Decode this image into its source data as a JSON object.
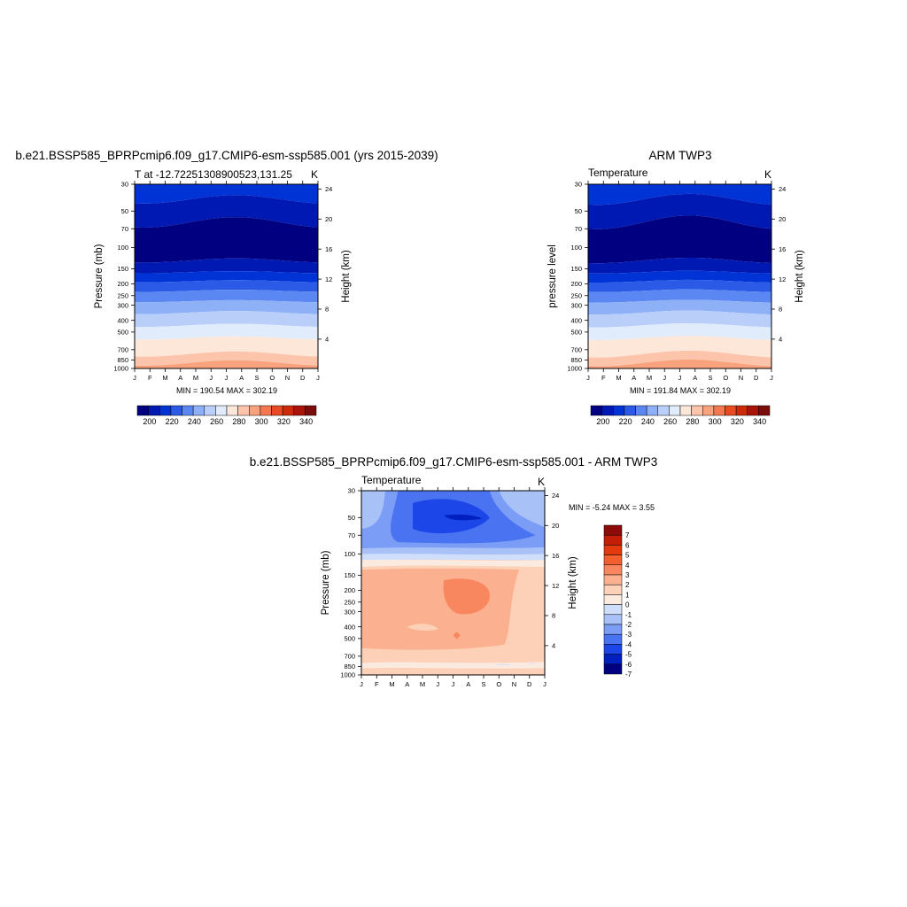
{
  "colors": {
    "palette_12": [
      "#000080",
      "#0019b3",
      "#0033d6",
      "#2b5be6",
      "#5b87f2",
      "#8eb0f7",
      "#b9cff9",
      "#e0ecfb",
      "#fde7d9",
      "#fcc5ab",
      "#f9a27e",
      "#f4774f",
      "#e84a24",
      "#cd2a0a",
      "#a8140a",
      "#7a0c0c"
    ],
    "palette_diff": [
      "#000080",
      "#0020c0",
      "#1d46e8",
      "#4a73f2",
      "#7b9df6",
      "#a8c2f8",
      "#cfdefb",
      "#fbeae0",
      "#fcd1b8",
      "#fbb08f",
      "#f8875f",
      "#f2602f",
      "#e43a10",
      "#c31e08",
      "#8c0a0a"
    ]
  },
  "months": [
    "J",
    "F",
    "M",
    "A",
    "M",
    "J",
    "J",
    "A",
    "S",
    "O",
    "N",
    "D",
    "J"
  ],
  "pressure_ticks": [
    "30",
    "50",
    "70",
    "100",
    "150",
    "200",
    "250",
    "300",
    "400",
    "500",
    "700",
    "850",
    "1000"
  ],
  "pressure_values": [
    30,
    50,
    70,
    100,
    150,
    200,
    250,
    300,
    400,
    500,
    700,
    850,
    1000
  ],
  "height_ticks_km": [
    4,
    8,
    12,
    16,
    20,
    24
  ],
  "panel1": {
    "title": "b.e21.BSSP585_BPRPcmip6.f09_g17.CMIP6-esm-ssp585.001 (yrs 2015-2039)",
    "subtitle_left": "T at -12.72251308900523,131.25",
    "subtitle_right": "K",
    "ylabel": "Pressure (mb)",
    "ylabel_right": "Height (km)",
    "minmax": "MIN = 190.54 MAX = 302.19"
  },
  "panel2": {
    "title": "ARM TWP3",
    "subtitle_left": "Temperature",
    "subtitle_right": "K",
    "ylabel": "pressure level",
    "ylabel_right": "Height (km)",
    "minmax": "MIN = 191.84 MAX = 302.19"
  },
  "panel3": {
    "title": "b.e21.BSSP585_BPRPcmip6.f09_g17.CMIP6-esm-ssp585.001 - ARM TWP3",
    "subtitle_left": "Temperature",
    "subtitle_right": "K",
    "ylabel": "Pressure (mb)",
    "ylabel_right": "Height (km)",
    "minmax": "MIN =  -5.24 MAX =   3.55"
  },
  "colorbar_temp_labels": [
    "200",
    "220",
    "240",
    "260",
    "280",
    "300",
    "320",
    "340"
  ],
  "colorbar_diff_labels": [
    "7",
    "6",
    "5",
    "4",
    "3",
    "2",
    "1",
    "0",
    "-1",
    "-2",
    "-3",
    "-4",
    "-5",
    "-6",
    "-7"
  ],
  "chart_data": [
    {
      "type": "heatmap",
      "title": "b.e21.BSSP585_BPRPcmip6.f09_g17.CMIP6-esm-ssp585.001 (yrs 2015-2039)",
      "subtitle": "T at -12.72251308900523,131.25",
      "units": "K",
      "xlabel": "",
      "ylabel": "Pressure (mb)",
      "ylabel_right": "Height (km)",
      "x": [
        "J",
        "F",
        "M",
        "A",
        "M",
        "J",
        "J",
        "A",
        "S",
        "O",
        "N",
        "D",
        "J"
      ],
      "y_pressure": [
        30,
        50,
        70,
        100,
        150,
        200,
        250,
        300,
        400,
        500,
        700,
        850,
        1000
      ],
      "y_log": true,
      "levels": [
        190,
        200,
        210,
        220,
        230,
        240,
        250,
        260,
        270,
        280,
        290,
        300,
        310,
        320,
        330,
        340,
        350
      ],
      "min": 190.54,
      "max": 302.19
    },
    {
      "type": "heatmap",
      "title": "ARM TWP3",
      "subtitle": "Temperature",
      "units": "K",
      "xlabel": "",
      "ylabel": "pressure level",
      "ylabel_right": "Height (km)",
      "x": [
        "J",
        "F",
        "M",
        "A",
        "M",
        "J",
        "J",
        "A",
        "S",
        "O",
        "N",
        "D",
        "J"
      ],
      "y_pressure": [
        30,
        50,
        70,
        100,
        150,
        200,
        250,
        300,
        400,
        500,
        700,
        850,
        1000
      ],
      "y_log": true,
      "min": 191.84,
      "max": 302.19
    },
    {
      "type": "heatmap",
      "title": "b.e21.BSSP585_BPRPcmip6.f09_g17.CMIP6-esm-ssp585.001 - ARM TWP3",
      "subtitle": "Temperature",
      "units": "K",
      "xlabel": "",
      "ylabel": "Pressure (mb)",
      "ylabel_right": "Height (km)",
      "x": [
        "J",
        "F",
        "M",
        "A",
        "M",
        "J",
        "J",
        "A",
        "S",
        "O",
        "N",
        "D",
        "J"
      ],
      "y_pressure": [
        30,
        50,
        70,
        100,
        150,
        200,
        250,
        300,
        400,
        500,
        700,
        850,
        1000
      ],
      "y_log": true,
      "levels": [
        -7,
        -6,
        -5,
        -4,
        -3,
        -2,
        -1,
        0,
        1,
        2,
        3,
        4,
        5,
        6,
        7
      ],
      "min": -5.24,
      "max": 3.55
    }
  ]
}
